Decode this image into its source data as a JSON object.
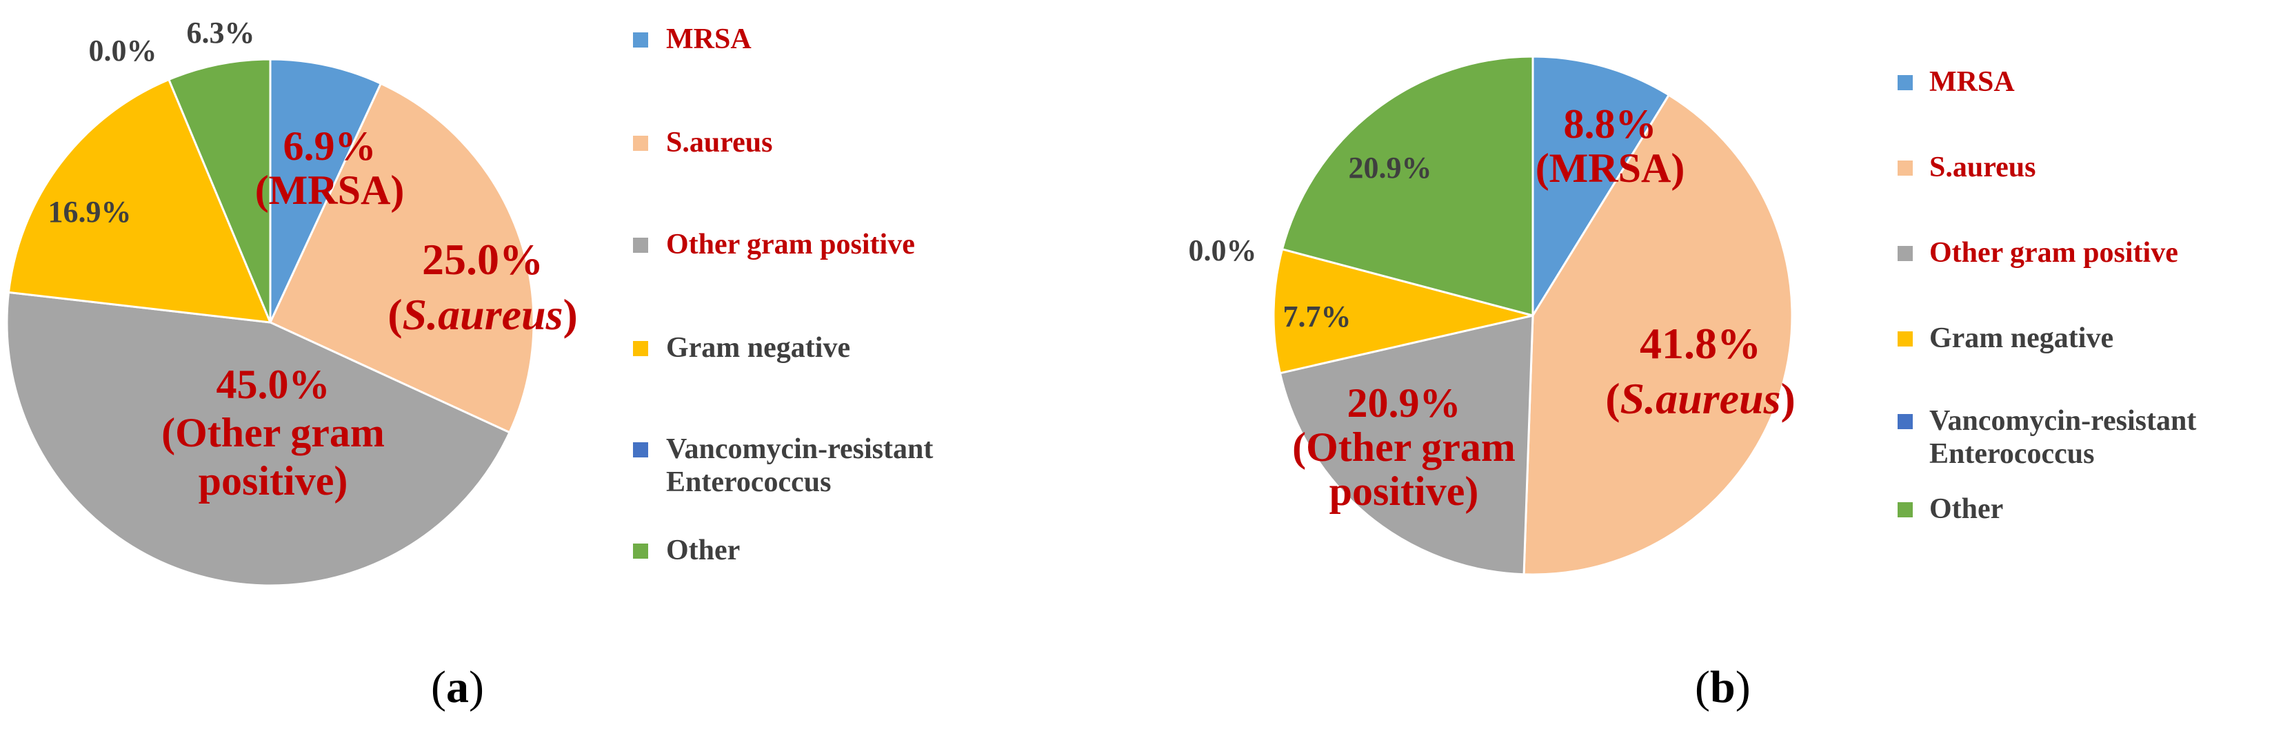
{
  "chart_data": [
    {
      "type": "pie",
      "panel": "(a)",
      "panel_letter": "a",
      "categories": [
        "MRSA",
        "S.aureus",
        "Other gram positive",
        "Gram negative",
        "Vancomycin-resistant Enterococcus",
        "Other"
      ],
      "values": [
        6.9,
        25.0,
        45.0,
        16.9,
        0.0,
        6.3
      ],
      "colors": [
        "#5b9bd5",
        "#f8c193",
        "#a5a5a5",
        "#ffc000",
        "#4472c4",
        "#70ad47"
      ],
      "slice_labels": [
        {
          "value": "6.9%",
          "name": "(MRSA)",
          "highlight": true
        },
        {
          "value": "25.0%",
          "name": "(S.aureus)",
          "italic": true,
          "highlight": true
        },
        {
          "value": "45.0%",
          "name": "(Other gram positive)",
          "name_lines": [
            "(Other gram",
            "positive)"
          ],
          "highlight": true
        },
        {
          "value": "16.9%"
        },
        {
          "value": "0.0%"
        },
        {
          "value": "6.3%"
        }
      ],
      "legend": [
        {
          "lines": [
            "MRSA"
          ],
          "color": "#5b9bd5",
          "highlight": true
        },
        {
          "lines": [
            "S.aureus"
          ],
          "color": "#f8c193",
          "highlight": true
        },
        {
          "lines": [
            "Other gram positive"
          ],
          "color": "#a5a5a5",
          "highlight": true
        },
        {
          "lines": [
            "Gram negative"
          ],
          "color": "#ffc000",
          "highlight": false
        },
        {
          "lines": [
            "Vancomycin-resistant",
            "Enterococcus"
          ],
          "color": "#4472c4",
          "highlight": false
        },
        {
          "lines": [
            "Other"
          ],
          "color": "#70ad47",
          "highlight": false
        }
      ],
      "legend_position": "right"
    },
    {
      "type": "pie",
      "panel": "(b)",
      "panel_letter": "b",
      "categories": [
        "MRSA",
        "S.aureus",
        "Other gram positive",
        "Gram negative",
        "Vancomycin-resistant Enterococcus",
        "Other"
      ],
      "values": [
        8.8,
        41.8,
        20.9,
        7.7,
        0.0,
        20.9
      ],
      "colors": [
        "#5b9bd5",
        "#f8c193",
        "#a5a5a5",
        "#ffc000",
        "#4472c4",
        "#70ad47"
      ],
      "slice_labels": [
        {
          "value": "8.8%",
          "name": "(MRSA)",
          "highlight": true
        },
        {
          "value": "41.8%",
          "name": "(S.aureus)",
          "italic": true,
          "highlight": true
        },
        {
          "value": "20.9%",
          "name": "(Other gram positive)",
          "name_lines": [
            "(Other gram",
            "positive)"
          ],
          "highlight": true
        },
        {
          "value": "7.7%"
        },
        {
          "value": "0.0%"
        },
        {
          "value": "20.9%"
        }
      ],
      "legend": [
        {
          "lines": [
            "MRSA"
          ],
          "color": "#5b9bd5",
          "highlight": true
        },
        {
          "lines": [
            "S.aureus"
          ],
          "color": "#f8c193",
          "highlight": true
        },
        {
          "lines": [
            "Other gram positive"
          ],
          "color": "#a5a5a5",
          "highlight": true
        },
        {
          "lines": [
            "Gram negative"
          ],
          "color": "#ffc000",
          "highlight": false
        },
        {
          "lines": [
            "Vancomycin-resistant",
            "Enterococcus"
          ],
          "color": "#4472c4",
          "highlight": false
        },
        {
          "lines": [
            "Other"
          ],
          "color": "#70ad47",
          "highlight": false
        }
      ],
      "legend_position": "right"
    }
  ],
  "style": {
    "highlight_text_color": "#c00000",
    "plain_text_color": "#3f3f3f",
    "caption_color": "#000000"
  }
}
